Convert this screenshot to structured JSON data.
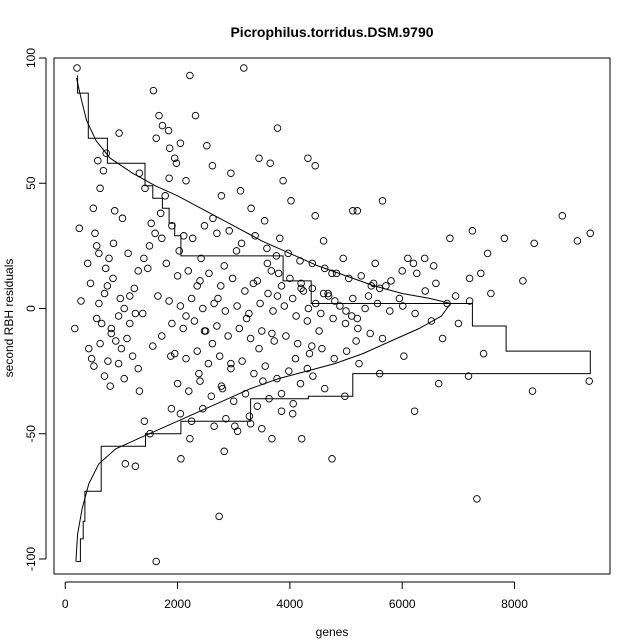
{
  "chart_data": {
    "type": "scatter",
    "title": "Picrophilus.torridus.DSM.9790",
    "xlabel": "genes",
    "ylabel": "second RBH residuals",
    "xlim": [
      -200,
      9700
    ],
    "ylim": [
      -106,
      100
    ],
    "x_ticks": [
      0,
      2000,
      4000,
      6000,
      8000
    ],
    "x_tick_labels": [
      "0",
      "2000",
      "4000",
      "6000",
      "8000"
    ],
    "y_ticks": [
      -100,
      -50,
      0,
      50,
      100
    ],
    "y_tick_labels": [
      "-100",
      "-50",
      "0",
      "50",
      "100"
    ],
    "grid": false,
    "legend": "none",
    "point_style": "open circle",
    "points": [
      [
        210,
        96
      ],
      [
        3180,
        96
      ],
      [
        2220,
        93
      ],
      [
        1570,
        87
      ],
      [
        1670,
        77
      ],
      [
        2320,
        77
      ],
      [
        1730,
        73
      ],
      [
        3780,
        72
      ],
      [
        1840,
        71
      ],
      [
        960,
        70
      ],
      [
        1620,
        68
      ],
      [
        2520,
        65
      ],
      [
        1860,
        64
      ],
      [
        3450,
        60
      ],
      [
        4320,
        60
      ],
      [
        580,
        59
      ],
      [
        1980,
        58
      ],
      [
        2620,
        57
      ],
      [
        3650,
        58
      ],
      [
        4450,
        57
      ],
      [
        1320,
        54
      ],
      [
        2950,
        54
      ],
      [
        2150,
        51
      ],
      [
        3880,
        51
      ],
      [
        1420,
        48
      ],
      [
        3120,
        47
      ],
      [
        4020,
        43
      ],
      [
        2780,
        45
      ],
      [
        5650,
        43
      ],
      [
        5200,
        39
      ],
      [
        3310,
        40
      ],
      [
        1020,
        36
      ],
      [
        880,
        39
      ],
      [
        5120,
        39
      ],
      [
        8850,
        37
      ],
      [
        250,
        32
      ],
      [
        2630,
        36
      ],
      [
        3550,
        35
      ],
      [
        4450,
        37
      ],
      [
        1530,
        34
      ],
      [
        7250,
        31
      ],
      [
        9350,
        30
      ],
      [
        1720,
        28
      ],
      [
        3820,
        28
      ],
      [
        4600,
        27
      ],
      [
        6850,
        28
      ],
      [
        7820,
        28
      ],
      [
        8350,
        26
      ],
      [
        9120,
        27
      ],
      [
        600,
        22
      ],
      [
        1120,
        22
      ],
      [
        2030,
        23
      ],
      [
        2420,
        20
      ],
      [
        3050,
        23
      ],
      [
        4950,
        20
      ],
      [
        6100,
        20
      ],
      [
        7520,
        22
      ],
      [
        720,
        16
      ],
      [
        1470,
        16
      ],
      [
        2830,
        17
      ],
      [
        3670,
        15
      ],
      [
        4750,
        14
      ],
      [
        5520,
        18
      ],
      [
        6560,
        17
      ],
      [
        8150,
        11
      ],
      [
        450,
        10
      ],
      [
        1230,
        8
      ],
      [
        2350,
        9
      ],
      [
        3350,
        10
      ],
      [
        4200,
        8
      ],
      [
        5450,
        9
      ],
      [
        7200,
        12
      ],
      [
        280,
        3
      ],
      [
        980,
        4
      ],
      [
        1650,
        5
      ],
      [
        2720,
        4
      ],
      [
        3780,
        5
      ],
      [
        4680,
        6
      ],
      [
        5950,
        4
      ],
      [
        7580,
        6
      ],
      [
        560,
        -4
      ],
      [
        1380,
        -2
      ],
      [
        2150,
        -3
      ],
      [
        3230,
        -4
      ],
      [
        4310,
        -5
      ],
      [
        5100,
        -3
      ],
      [
        6520,
        -5
      ],
      [
        170,
        -8
      ],
      [
        820,
        -10
      ],
      [
        1720,
        -11
      ],
      [
        2480,
        -9
      ],
      [
        3680,
        -10
      ],
      [
        4520,
        -9
      ],
      [
        6720,
        -12
      ],
      [
        620,
        -14
      ],
      [
        1560,
        -15
      ],
      [
        2620,
        -14
      ],
      [
        3450,
        -16
      ],
      [
        4390,
        -15
      ],
      [
        5180,
        -13
      ],
      [
        760,
        -21
      ],
      [
        1880,
        -19
      ],
      [
        2950,
        -22
      ],
      [
        4100,
        -20
      ],
      [
        6030,
        -19
      ],
      [
        7450,
        -18
      ],
      [
        1050,
        -28
      ],
      [
        2380,
        -26
      ],
      [
        3520,
        -29
      ],
      [
        4310,
        -24
      ],
      [
        5600,
        -26
      ],
      [
        7180,
        -27
      ],
      [
        6650,
        -30
      ],
      [
        9330,
        -29
      ],
      [
        1320,
        -33
      ],
      [
        2780,
        -31
      ],
      [
        3850,
        -34
      ],
      [
        4980,
        -35
      ],
      [
        8320,
        -33
      ],
      [
        1410,
        -45
      ],
      [
        1890,
        -40
      ],
      [
        3300,
        -46
      ],
      [
        4050,
        -42
      ],
      [
        6220,
        -41
      ],
      [
        1510,
        -50
      ],
      [
        2220,
        -52
      ],
      [
        3020,
        -47
      ],
      [
        3680,
        -52
      ],
      [
        4210,
        -52
      ],
      [
        1070,
        -62
      ],
      [
        1250,
        -63
      ],
      [
        2060,
        -60
      ],
      [
        2830,
        -57
      ],
      [
        4750,
        -60
      ],
      [
        2740,
        -83
      ],
      [
        7330,
        -76
      ],
      [
        1620,
        -101
      ],
      [
        1900,
        33
      ],
      [
        2110,
        29
      ],
      [
        2270,
        28
      ],
      [
        2480,
        33
      ],
      [
        2700,
        30
      ],
      [
        2920,
        31
      ],
      [
        3140,
        26
      ],
      [
        3380,
        29
      ],
      [
        3590,
        24
      ],
      [
        3760,
        21
      ],
      [
        3970,
        22
      ],
      [
        4180,
        19
      ],
      [
        4400,
        18
      ],
      [
        4620,
        16
      ],
      [
        4830,
        14
      ],
      [
        5050,
        12
      ],
      [
        5270,
        13
      ],
      [
        5490,
        10
      ],
      [
        5710,
        9
      ],
      [
        6260,
        14
      ],
      [
        6410,
        7
      ],
      [
        6950,
        5
      ],
      [
        1800,
        18
      ],
      [
        2000,
        13
      ],
      [
        2190,
        15
      ],
      [
        2400,
        11
      ],
      [
        2560,
        14
      ],
      [
        2770,
        9
      ],
      [
        2980,
        12
      ],
      [
        3200,
        7
      ],
      [
        3420,
        11
      ],
      [
        3610,
        6
      ],
      [
        3850,
        9
      ],
      [
        4050,
        4
      ],
      [
        4240,
        7
      ],
      [
        4460,
        2
      ],
      [
        4690,
        5
      ],
      [
        4890,
        1
      ],
      [
        5120,
        4
      ],
      [
        5340,
        0
      ],
      [
        5560,
        2
      ],
      [
        5780,
        -1
      ],
      [
        6010,
        1
      ],
      [
        6230,
        -2
      ],
      [
        1850,
        3
      ],
      [
        2050,
        1
      ],
      [
        2250,
        4
      ],
      [
        2450,
        0
      ],
      [
        2650,
        2
      ],
      [
        2850,
        -1
      ],
      [
        3060,
        1
      ],
      [
        3270,
        -2
      ],
      [
        3470,
        2
      ],
      [
        3700,
        -1
      ],
      [
        3900,
        1
      ],
      [
        4110,
        -3
      ],
      [
        4330,
        0
      ],
      [
        4550,
        -2
      ],
      [
        4770,
        -4
      ],
      [
        4990,
        -6
      ],
      [
        5210,
        -8
      ],
      [
        5430,
        -10
      ],
      [
        5650,
        -12
      ],
      [
        1900,
        -6
      ],
      [
        2100,
        -8
      ],
      [
        2300,
        -5
      ],
      [
        2500,
        -9
      ],
      [
        2700,
        -7
      ],
      [
        2900,
        -11
      ],
      [
        3100,
        -8
      ],
      [
        3300,
        -12
      ],
      [
        3500,
        -9
      ],
      [
        3720,
        -13
      ],
      [
        3930,
        -11
      ],
      [
        4140,
        -14
      ],
      [
        4350,
        -18
      ],
      [
        4570,
        -16
      ],
      [
        4790,
        -20
      ],
      [
        5010,
        -17
      ],
      [
        5230,
        -22
      ],
      [
        1950,
        -18
      ],
      [
        2150,
        -20
      ],
      [
        2350,
        -17
      ],
      [
        2550,
        -22
      ],
      [
        2750,
        -19
      ],
      [
        2950,
        -24
      ],
      [
        3150,
        -21
      ],
      [
        3360,
        -26
      ],
      [
        3560,
        -23
      ],
      [
        3770,
        -28
      ],
      [
        3980,
        -25
      ],
      [
        4190,
        -30
      ],
      [
        4410,
        -27
      ],
      [
        4620,
        -32
      ],
      [
        2000,
        -30
      ],
      [
        2200,
        -33
      ],
      [
        2400,
        -29
      ],
      [
        2600,
        -35
      ],
      [
        2800,
        -32
      ],
      [
        3000,
        -37
      ],
      [
        3210,
        -34
      ],
      [
        3420,
        -39
      ],
      [
        3630,
        -36
      ],
      [
        3850,
        -41
      ],
      [
        4060,
        -38
      ],
      [
        2050,
        -42
      ],
      [
        2250,
        -45
      ],
      [
        2450,
        -40
      ],
      [
        2650,
        -47
      ],
      [
        2860,
        -44
      ],
      [
        3070,
        -49
      ],
      [
        3280,
        -43
      ],
      [
        3500,
        -48
      ],
      [
        900,
        -13
      ],
      [
        1000,
        -16
      ],
      [
        1100,
        -12
      ],
      [
        1200,
        -19
      ],
      [
        1300,
        -24
      ],
      [
        700,
        -27
      ],
      [
        800,
        -31
      ],
      [
        950,
        -22
      ],
      [
        1150,
        -6
      ],
      [
        1250,
        -2
      ],
      [
        750,
        9
      ],
      [
        850,
        12
      ],
      [
        950,
        -3
      ],
      [
        1050,
        0
      ],
      [
        1150,
        5
      ],
      [
        1300,
        15
      ],
      [
        1400,
        20
      ],
      [
        1500,
        25
      ],
      [
        1600,
        30
      ],
      [
        1700,
        38
      ],
      [
        1780,
        45
      ],
      [
        1850,
        52
      ],
      [
        1950,
        60
      ],
      [
        2050,
        66
      ],
      [
        620,
        48
      ],
      [
        680,
        55
      ],
      [
        730,
        62
      ],
      [
        500,
        40
      ],
      [
        530,
        30
      ],
      [
        560,
        25
      ],
      [
        400,
        18
      ],
      [
        420,
        -16
      ],
      [
        470,
        -20
      ],
      [
        510,
        -23
      ],
      [
        600,
        2
      ],
      [
        650,
        -6
      ],
      [
        700,
        6
      ],
      [
        780,
        20
      ],
      [
        820,
        -8
      ],
      [
        860,
        26
      ],
      [
        3600,
        18
      ],
      [
        3800,
        14
      ],
      [
        4000,
        12
      ],
      [
        4200,
        10
      ],
      [
        4400,
        8
      ],
      [
        4600,
        6
      ],
      [
        4800,
        3
      ],
      [
        5000,
        -1
      ],
      [
        5200,
        -4
      ],
      [
        5400,
        5
      ],
      [
        5600,
        8
      ],
      [
        5800,
        11
      ],
      [
        6000,
        15
      ],
      [
        6200,
        18
      ],
      [
        6400,
        20
      ],
      [
        6600,
        10
      ],
      [
        6800,
        2
      ],
      [
        7000,
        -6
      ],
      [
        7200,
        3
      ],
      [
        7400,
        14
      ]
    ],
    "histogram_steps": [
      [
        200,
        -101
      ],
      [
        270,
        -101
      ],
      [
        270,
        -92
      ],
      [
        320,
        -92
      ],
      [
        320,
        -85
      ],
      [
        350,
        -85
      ],
      [
        350,
        -73
      ],
      [
        640,
        -73
      ],
      [
        640,
        -55
      ],
      [
        1430,
        -55
      ],
      [
        1430,
        -50
      ],
      [
        2060,
        -50
      ],
      [
        2060,
        -45
      ],
      [
        3300,
        -45
      ],
      [
        3300,
        -36
      ],
      [
        4330,
        -36
      ],
      [
        4330,
        -35
      ],
      [
        5120,
        -35
      ],
      [
        5120,
        -26
      ],
      [
        9350,
        -26
      ],
      [
        9350,
        -17
      ],
      [
        7850,
        -17
      ],
      [
        7850,
        -7
      ],
      [
        7250,
        -7
      ],
      [
        7250,
        2
      ],
      [
        4380,
        2
      ],
      [
        4380,
        11
      ],
      [
        3880,
        11
      ],
      [
        3880,
        21
      ],
      [
        2060,
        21
      ],
      [
        2060,
        29
      ],
      [
        1950,
        29
      ],
      [
        1950,
        34
      ],
      [
        1850,
        34
      ],
      [
        1850,
        40
      ],
      [
        1730,
        40
      ],
      [
        1730,
        44
      ],
      [
        1560,
        44
      ],
      [
        1560,
        49
      ],
      [
        1420,
        49
      ],
      [
        1420,
        58
      ],
      [
        750,
        58
      ],
      [
        750,
        68
      ],
      [
        410,
        68
      ],
      [
        410,
        86
      ],
      [
        220,
        86
      ],
      [
        220,
        93
      ]
    ],
    "envelope_upper": [
      [
        200,
        92
      ],
      [
        280,
        84
      ],
      [
        380,
        75
      ],
      [
        550,
        67
      ],
      [
        800,
        60
      ],
      [
        1200,
        54
      ],
      [
        1600,
        49
      ],
      [
        2000,
        45
      ],
      [
        2500,
        39
      ],
      [
        3000,
        33
      ],
      [
        3500,
        27
      ],
      [
        4000,
        22
      ],
      [
        4500,
        17
      ],
      [
        5000,
        13
      ],
      [
        5500,
        9
      ],
      [
        6000,
        6
      ],
      [
        6500,
        4
      ],
      [
        6860,
        2
      ]
    ],
    "envelope_lower": [
      [
        6860,
        2
      ],
      [
        6700,
        -3
      ],
      [
        6300,
        -8
      ],
      [
        5800,
        -13
      ],
      [
        5300,
        -18
      ],
      [
        4800,
        -22
      ],
      [
        4300,
        -25
      ],
      [
        3800,
        -28
      ],
      [
        3300,
        -32
      ],
      [
        2800,
        -37
      ],
      [
        2300,
        -42
      ],
      [
        1800,
        -47
      ],
      [
        1300,
        -52
      ],
      [
        900,
        -56
      ],
      [
        600,
        -62
      ],
      [
        420,
        -70
      ],
      [
        300,
        -80
      ],
      [
        220,
        -90
      ],
      [
        190,
        -101
      ]
    ]
  }
}
